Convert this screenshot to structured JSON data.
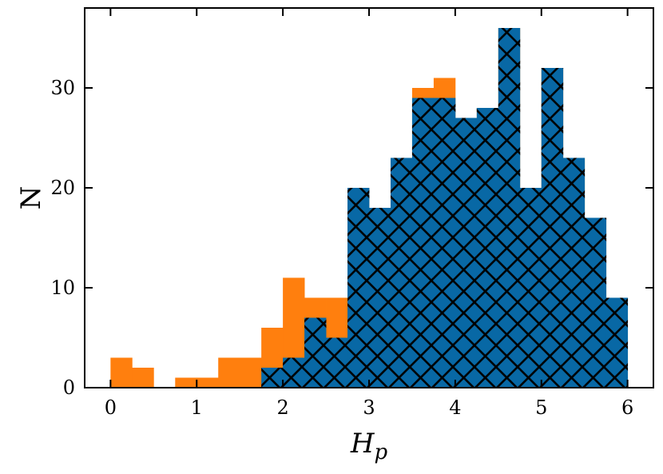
{
  "chart_data": {
    "type": "bar",
    "title": "",
    "xlabel_main": "H",
    "xlabel_sub": "p",
    "ylabel": "N",
    "xlim": [
      -0.3,
      6.3
    ],
    "ylim": [
      0,
      38
    ],
    "x_ticks": [
      0,
      1,
      2,
      3,
      4,
      5,
      6
    ],
    "y_ticks": [
      0,
      10,
      20,
      30
    ],
    "bin_edges": [
      0,
      0.25,
      0.5,
      0.75,
      1,
      1.25,
      1.5,
      1.75,
      2,
      2.25,
      2.5,
      2.75,
      3,
      3.25,
      3.5,
      3.75,
      4,
      4.25,
      4.5,
      4.75,
      5,
      5.25,
      5.5,
      5.75,
      6
    ],
    "series": [
      {
        "color": "#ff7f0e",
        "hatch": "none",
        "values": [
          3,
          2,
          0,
          1,
          1,
          3,
          3,
          6,
          11,
          9,
          9,
          20,
          18,
          23,
          30,
          31,
          27,
          28,
          36,
          20,
          32,
          23,
          17,
          9
        ]
      },
      {
        "color": "#0868a5",
        "hatch": "cross",
        "values": [
          0,
          0,
          0,
          0,
          0,
          0,
          0,
          2,
          3,
          7,
          5,
          20,
          18,
          23,
          29,
          29,
          27,
          28,
          36,
          20,
          32,
          23,
          17,
          9
        ]
      }
    ]
  }
}
